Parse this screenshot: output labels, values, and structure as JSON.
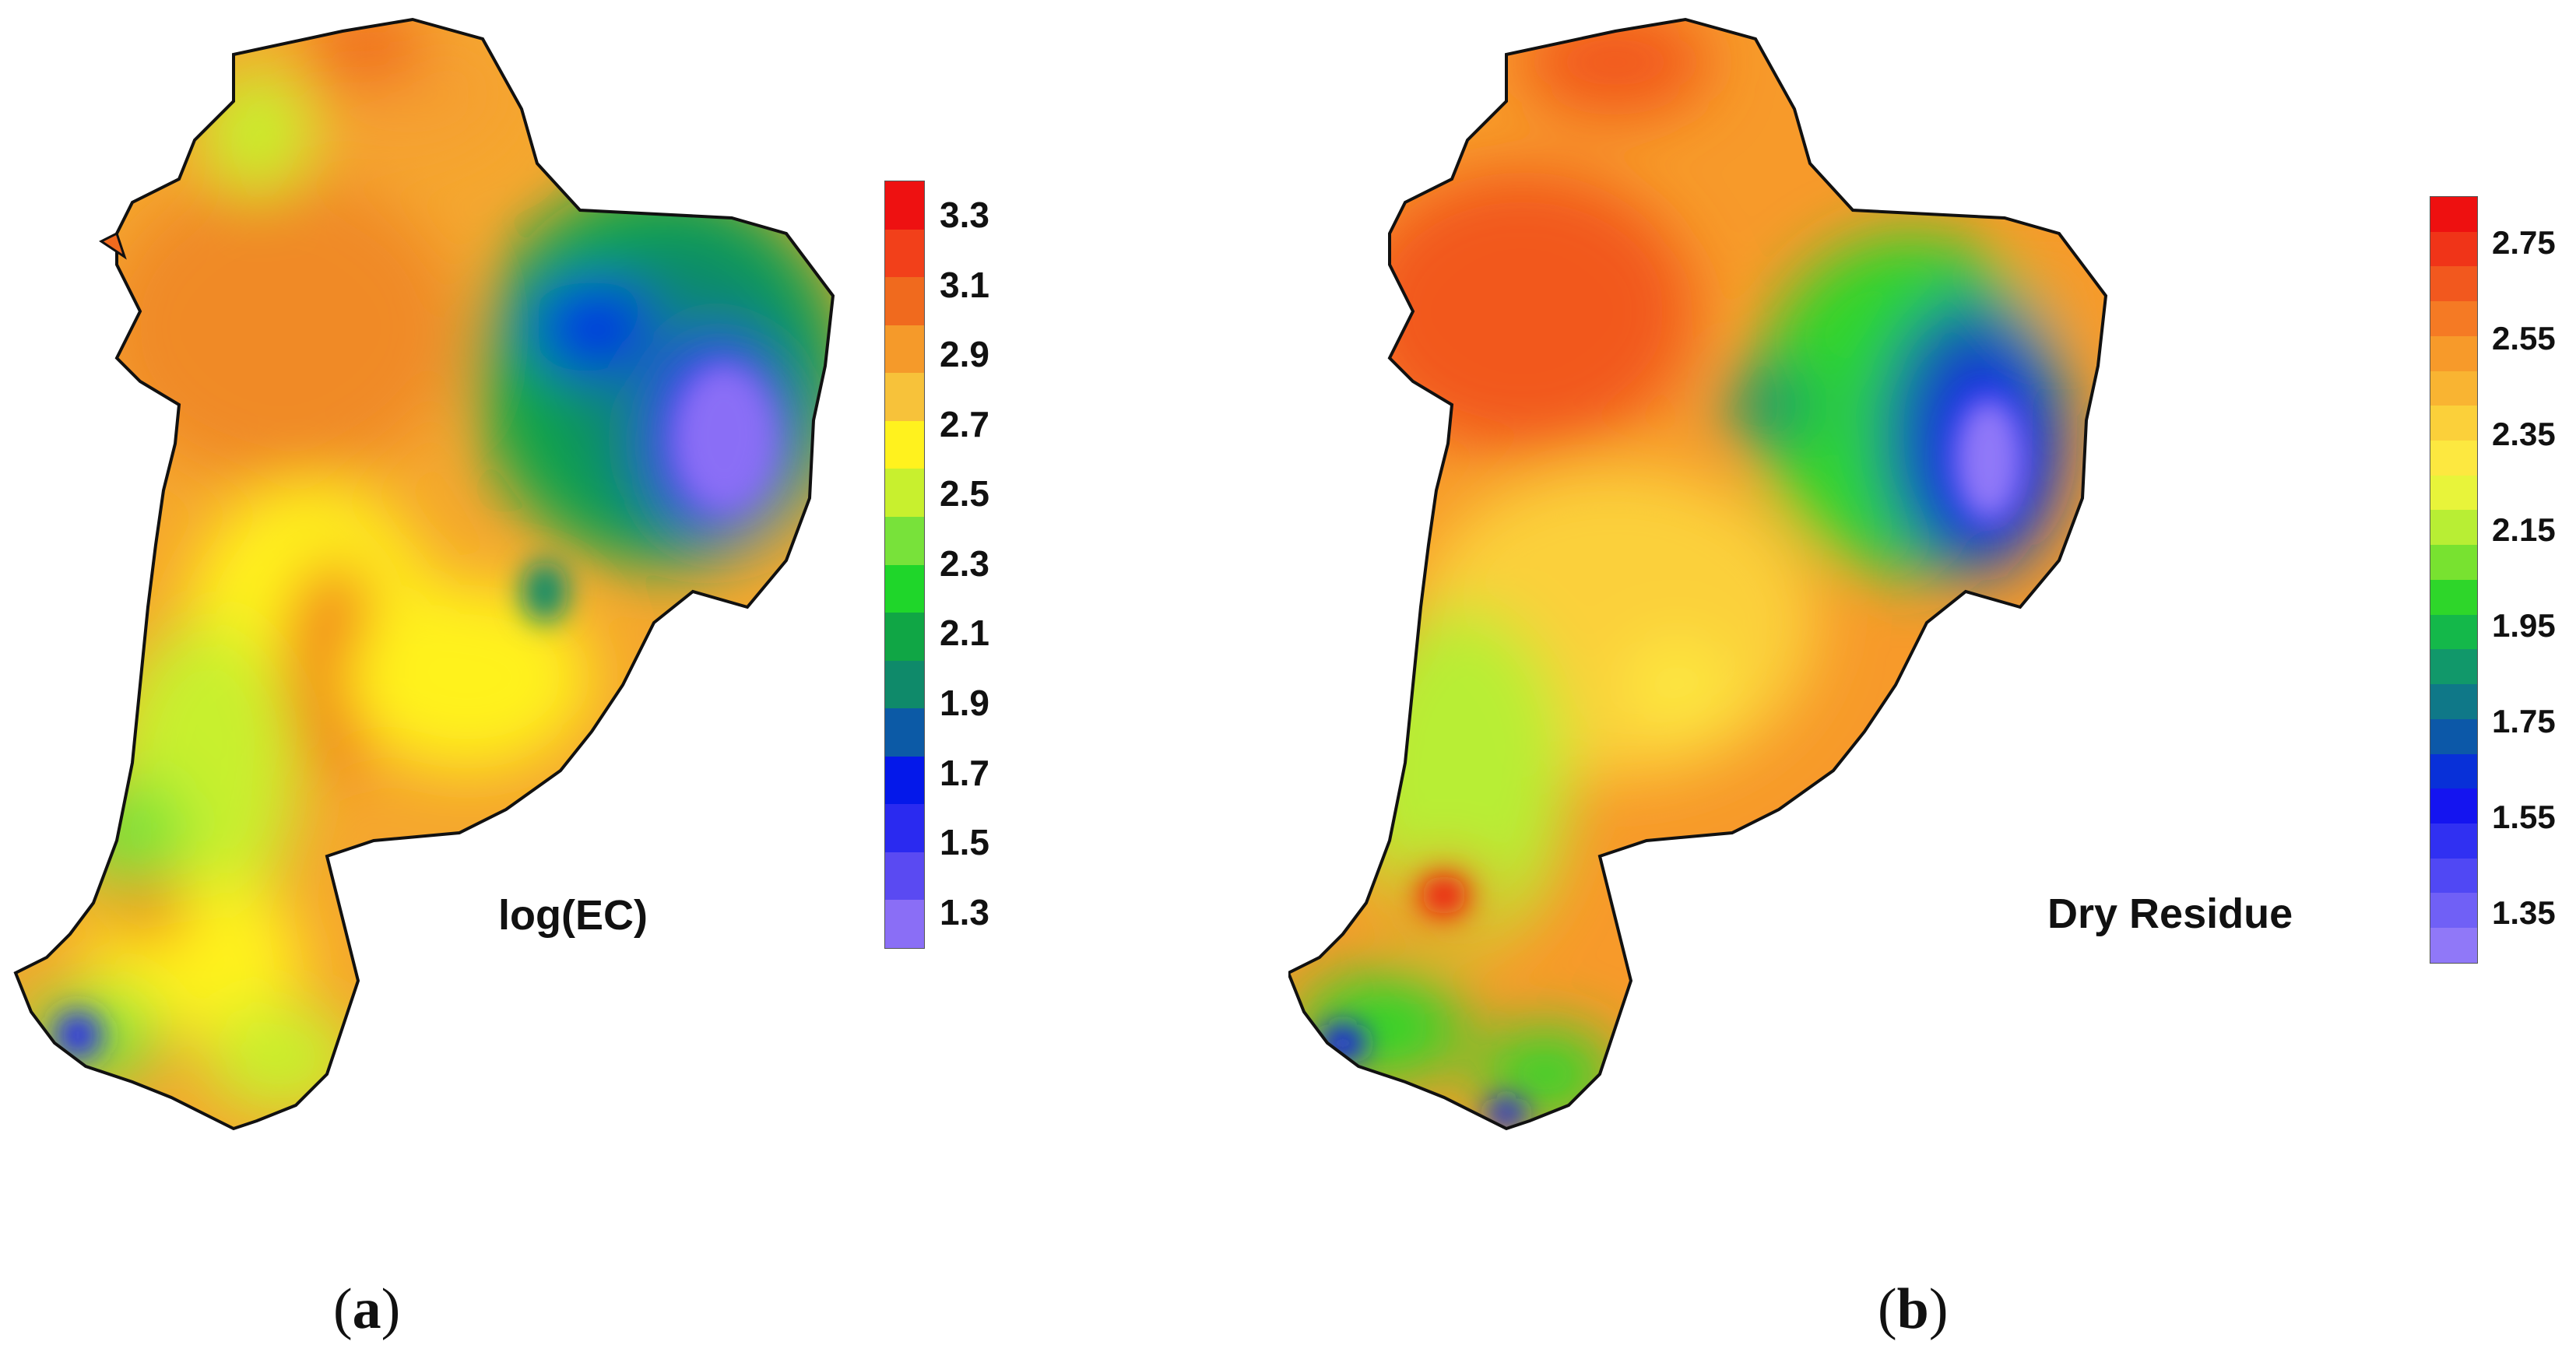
{
  "panels": [
    {
      "id": "a",
      "title": "log(EC)",
      "caption_letter": "a",
      "legend_ticks": [
        "3.3",
        "3.1",
        "2.9",
        "2.7",
        "2.5",
        "2.3",
        "2.1",
        "1.9",
        "1.7",
        "1.5",
        "1.3"
      ],
      "legend_colors": [
        "#ee1111",
        "#f2401a",
        "#f06a1e",
        "#f59a2a",
        "#f7c23a",
        "#fff21e",
        "#c8f02e",
        "#78e23a",
        "#1fd62a",
        "#10a645",
        "#0f8a6a",
        "#0c5aa6",
        "#0418ea",
        "#2a2af0",
        "#5a4af2",
        "#8a6ef6"
      ]
    },
    {
      "id": "b",
      "title": "Dry Residue",
      "caption_letter": "b",
      "legend_ticks": [
        "2.75",
        "2.55",
        "2.35",
        "2.15",
        "1.95",
        "1.75",
        "1.55",
        "1.35"
      ],
      "legend_colors": [
        "#ee1010",
        "#f03418",
        "#f2581e",
        "#f57a24",
        "#f79a2a",
        "#f9b432",
        "#fbd03a",
        "#fde840",
        "#e8f43a",
        "#b8ee34",
        "#78e230",
        "#2ed62a",
        "#14b84a",
        "#11986a",
        "#0f7888",
        "#0c58a8",
        "#0830d8",
        "#1414f0",
        "#3030f2",
        "#5048f4",
        "#7060f6",
        "#9078f8"
      ]
    }
  ]
}
